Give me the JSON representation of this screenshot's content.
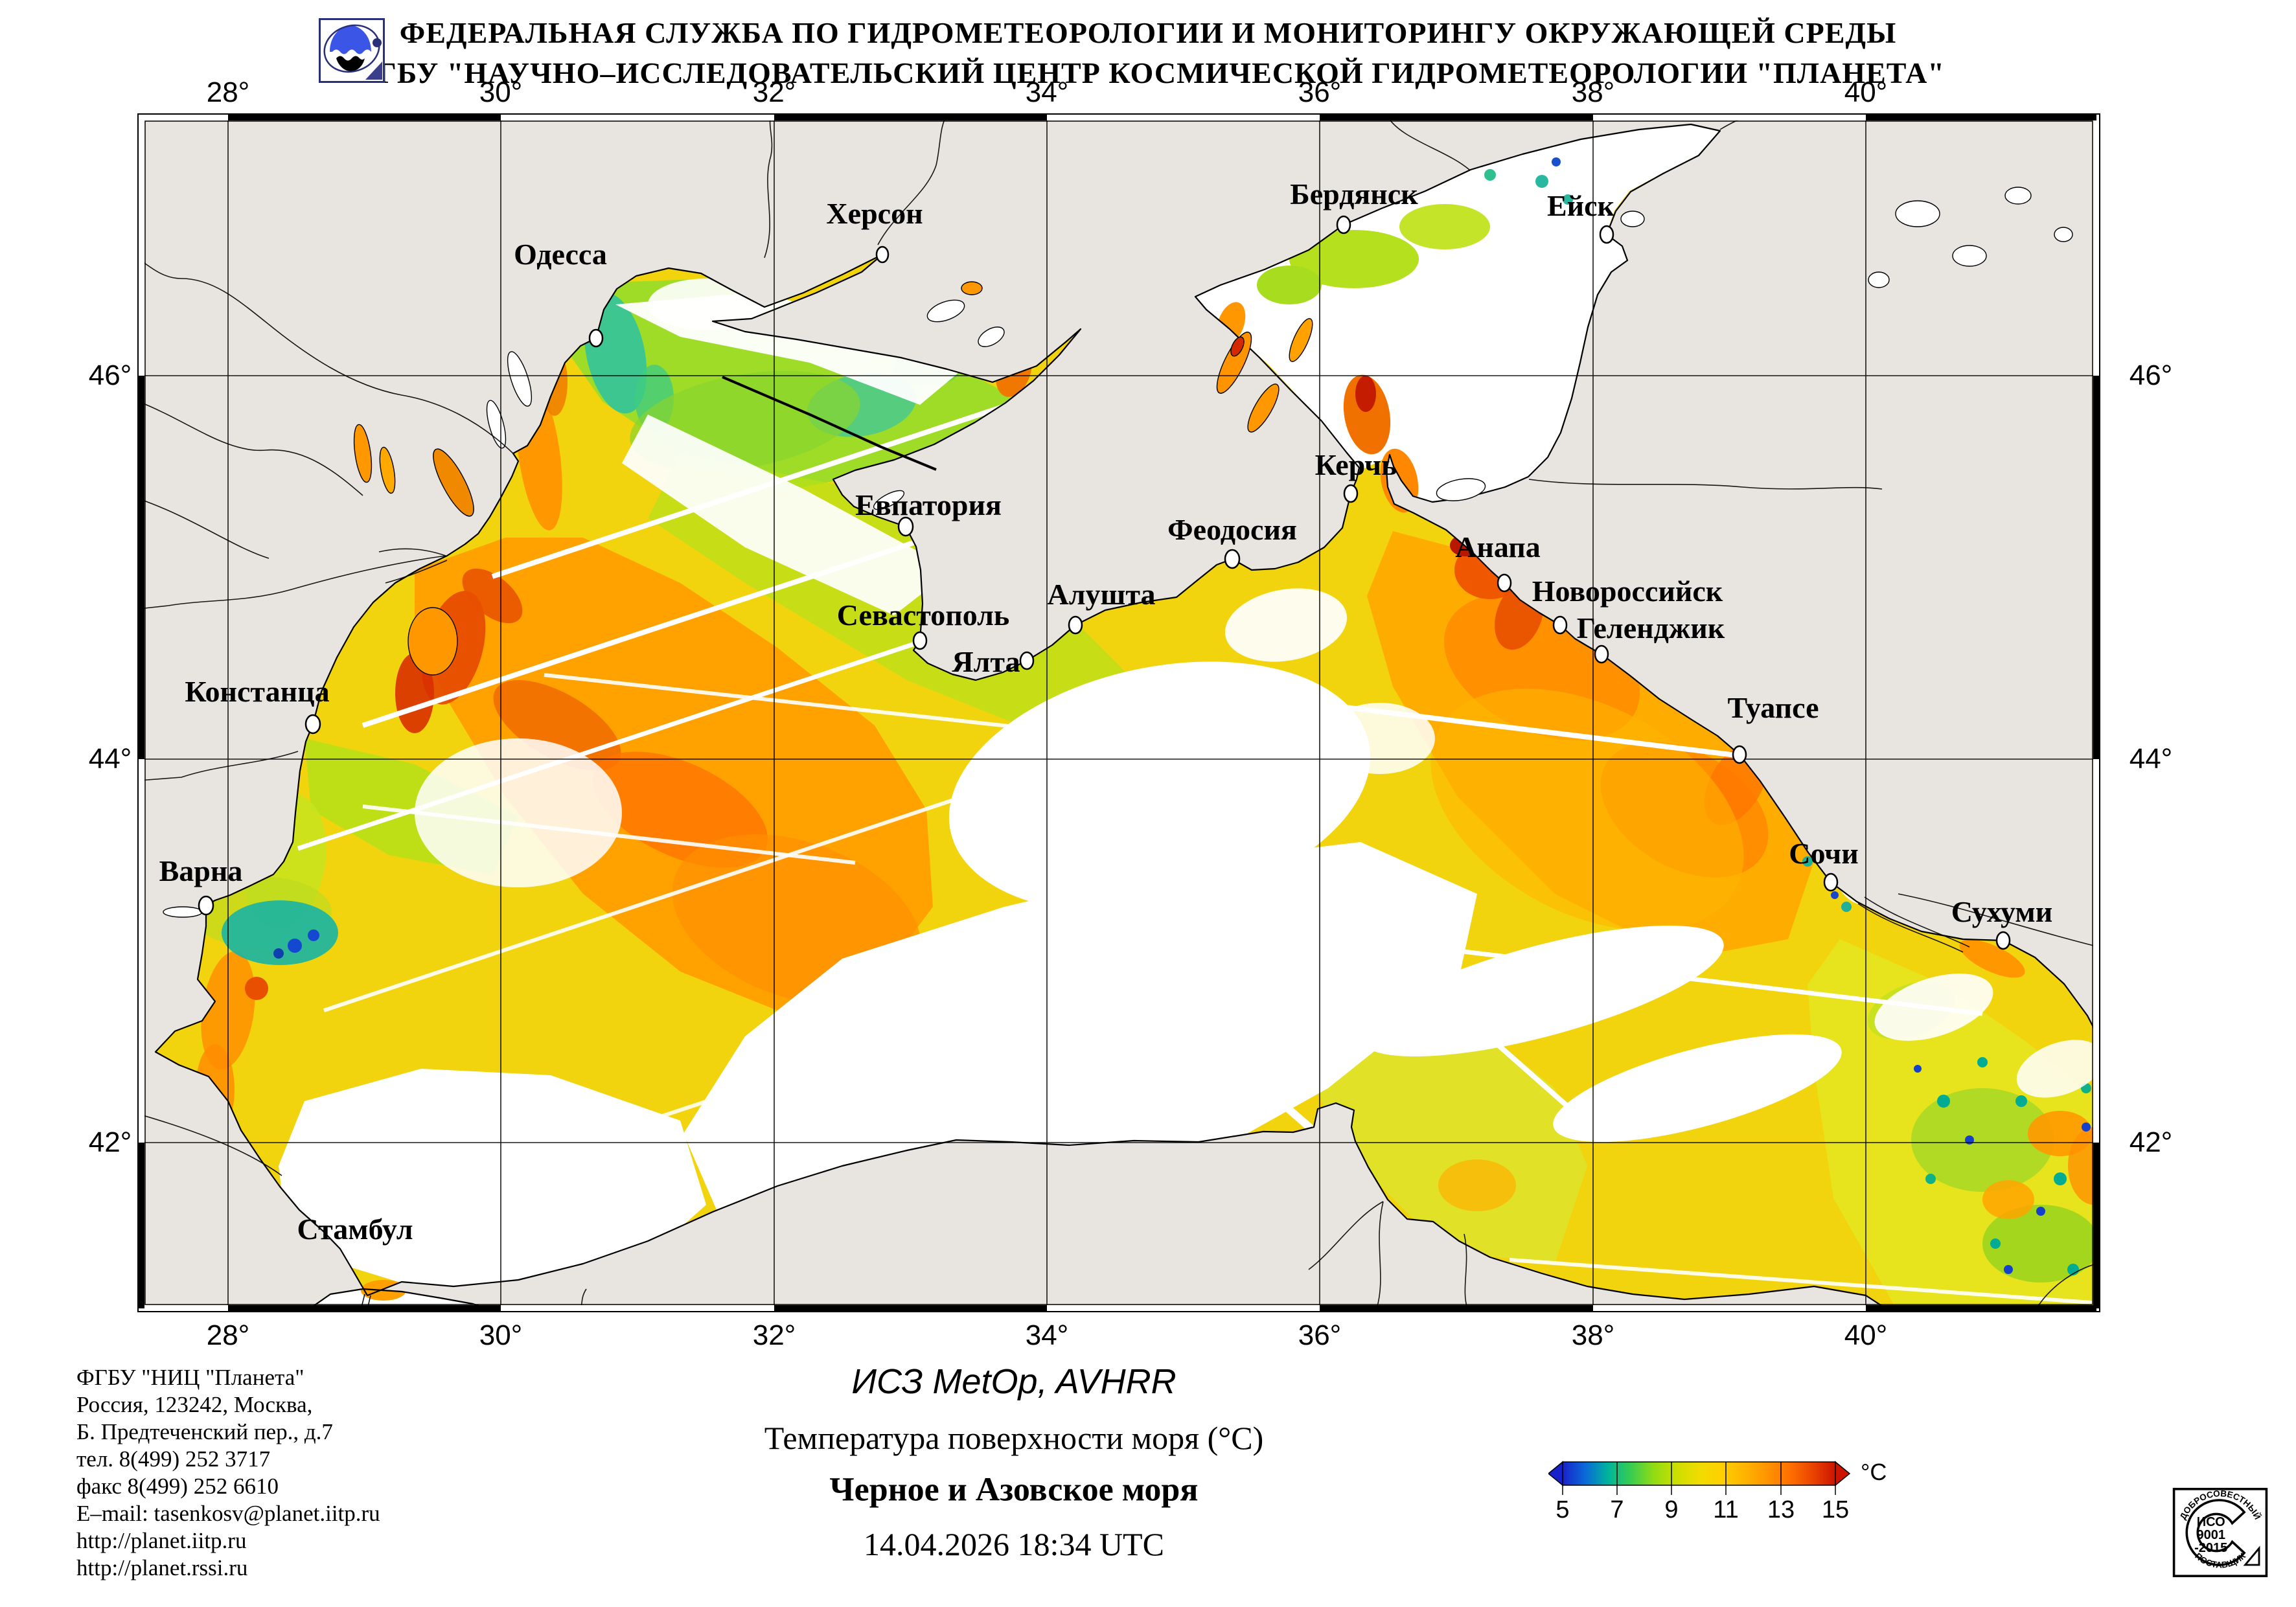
{
  "header": {
    "line1": "ФЕДЕРАЛЬНАЯ СЛУЖБА ПО ГИДРОМЕТЕОРОЛОГИИ И МОНИТОРИНГУ ОКРУЖАЮЩЕЙ СРЕДЫ",
    "line2": "ФГБУ \"НАУЧНО–ИССЛЕДОВАТЕЛЬСКИЙ ЦЕНТР КОСМИЧЕСКОЙ ГИДРОМЕТЕОРОЛОГИИ \"ПЛАНЕТА\""
  },
  "map": {
    "lon_labels": [
      "28°",
      "30°",
      "32°",
      "34°",
      "36°",
      "38°",
      "40°"
    ],
    "lat_labels": [
      "46°",
      "44°",
      "42°"
    ],
    "cities": [
      {
        "name": "Одесса"
      },
      {
        "name": "Херсон"
      },
      {
        "name": "Бердянск"
      },
      {
        "name": "Ейск"
      },
      {
        "name": "Керчь"
      },
      {
        "name": "Евпатория"
      },
      {
        "name": "Феодосия"
      },
      {
        "name": "Алушта"
      },
      {
        "name": "Севастополь"
      },
      {
        "name": "Ялта"
      },
      {
        "name": "Анапа"
      },
      {
        "name": "Новороссийск"
      },
      {
        "name": "Геленджик"
      },
      {
        "name": "Туапсе"
      },
      {
        "name": "Сочи"
      },
      {
        "name": "Сухуми"
      },
      {
        "name": "Констанца"
      },
      {
        "name": "Варна"
      },
      {
        "name": "Стамбул"
      }
    ]
  },
  "info": {
    "lines": [
      "ФГБУ \"НИЦ \"Планета\"",
      "Россия, 123242, Москва,",
      "Б. Предтеченский пер., д.7",
      "тел. 8(499) 252 3717",
      "факс 8(499) 252 6610",
      "E–mail: tasenkosv@planet.iitp.ru",
      "http://planet.iitp.ru",
      "http://planet.rssi.ru"
    ]
  },
  "caption": {
    "satellite": "ИСЗ MetOp, AVHRR",
    "parameter": "Температура поверхности моря (°C)",
    "region": "Черное и Азовское моря",
    "datetime": "14.04.2026 18:34 UTC"
  },
  "colorbar": {
    "ticks": [
      "5",
      "7",
      "9",
      "11",
      "13",
      "15"
    ],
    "unit": "°C",
    "min": 5,
    "max": 15,
    "gradient": [
      "#1822cc",
      "#0a6ad8",
      "#00b49c",
      "#38cc50",
      "#90dc14",
      "#ccdf00",
      "#f0dc00",
      "#ffd000",
      "#ffb400",
      "#ff9400",
      "#ff7000",
      "#ea4400",
      "#cc1400"
    ]
  },
  "stamp": {
    "arc_top": "ДОБРОСОВЕСТНЫЙ",
    "arc_bottom": "ПОСТАВЩИК",
    "center_lines": [
      "ИСО",
      "9001",
      "-2015"
    ]
  }
}
